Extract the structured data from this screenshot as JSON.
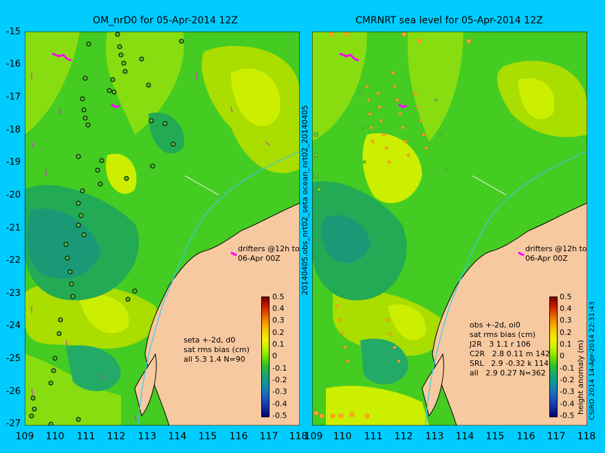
{
  "left_panel": {
    "title": "OM_nrD0 for 05-Apr-2014 12Z",
    "y_ticks": [
      "-15",
      "-16",
      "-17",
      "-18",
      "-19",
      "-20",
      "-21",
      "-22",
      "-23",
      "-24",
      "-25",
      "-26",
      "-27"
    ],
    "x_ticks": [
      "109",
      "110",
      "111",
      "112",
      "113",
      "114",
      "115",
      "116",
      "117",
      "118"
    ],
    "drifters_note": "drifters @12h to\n06-Apr 00Z",
    "stats_note": "seta +-2d, d0\nsat rms bias (cm)\nall 5.3 1.4 N=90",
    "colorbar_ticks": [
      "0.5",
      "0.4",
      "0.3",
      "0.2",
      "0.1",
      "0",
      "-0.1",
      "-0.2",
      "-0.3",
      "-0.4",
      "-0.5"
    ]
  },
  "right_panel": {
    "title": "CMRNRT sea level  for 05-Apr-2014 12Z",
    "x_ticks": [
      "109",
      "110",
      "111",
      "112",
      "113",
      "114",
      "115",
      "116",
      "117",
      "118"
    ],
    "drifters_note": "drifters @12h to\n06-Apr 00Z",
    "stats_note": "obs +-2d, oi0\nsat rms bias (cm)\nJ2R   3 1.1 r 106\nC2R   2.8 0.11 m 142\nSRL   2.9 -0.32 k 114\nall   2.9 0.27 N=362",
    "colorbar_ticks": [
      "0.5",
      "0.4",
      "0.3",
      "0.2",
      "0.1",
      "0",
      "-0.1",
      "-0.2",
      "-0.3",
      "-0.4",
      "-0.5"
    ]
  },
  "middle_vertical_label": "20140405.obs_nrt02_seta      ocean_nrt02_20140405",
  "colorbar_label": "height anomaly (m)",
  "credit": "CSIRO 2014  14-Apr-2014 22:31:43",
  "colors": {
    "background": "#00ccff",
    "land": "#f7c9a0",
    "sea_green": "#33cc33",
    "sea_yellow": "#ccee00",
    "drifter": "#ff00ff"
  }
}
